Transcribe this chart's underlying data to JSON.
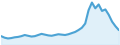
{
  "x": [
    0,
    1,
    2,
    3,
    4,
    5,
    6,
    7,
    8,
    9,
    10,
    11,
    12,
    13,
    14,
    15,
    16,
    17,
    18,
    19,
    20,
    21,
    22,
    23,
    24,
    25,
    26,
    27,
    28,
    29,
    30,
    31,
    32,
    33,
    34,
    35
  ],
  "y": [
    22,
    18,
    16,
    17,
    19,
    20,
    22,
    25,
    23,
    21,
    22,
    25,
    28,
    26,
    24,
    23,
    25,
    27,
    26,
    25,
    27,
    30,
    33,
    38,
    44,
    55,
    90,
    110,
    95,
    105,
    88,
    92,
    78,
    60,
    48,
    38
  ],
  "line_color": "#4ca3d4",
  "fill_color": "#cce6f5",
  "background_color": "#ffffff",
  "linewidth": 1.5
}
